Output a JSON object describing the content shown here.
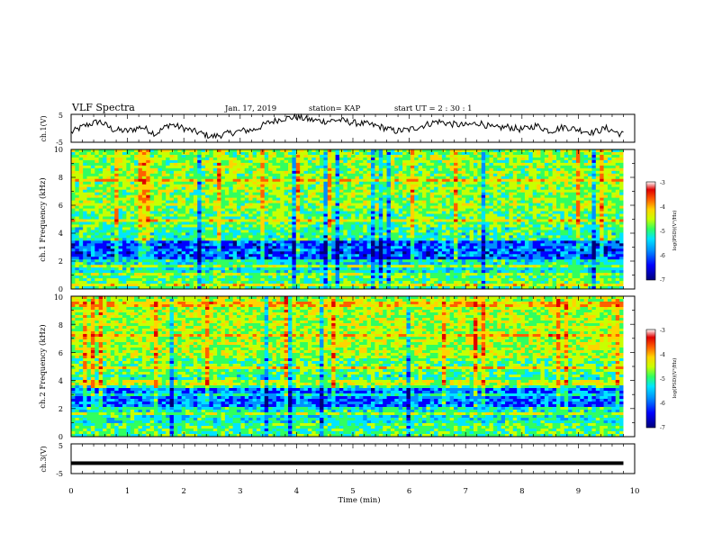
{
  "header": {
    "title": "VLF Spectra",
    "date": "Jan. 17, 2019",
    "station": "station= KAP",
    "start_ut": "start  UT =  2 : 30 : 1"
  },
  "chart_data": [
    {
      "type": "line",
      "panel": "ch1-waveform",
      "ylabel": "ch.1(V)",
      "ylim": [
        -5,
        5
      ],
      "yticks": [
        "5",
        "-5"
      ],
      "xlim": [
        0,
        10
      ],
      "x": [
        0.0,
        0.25,
        0.5,
        0.75,
        1.0,
        1.25,
        1.5,
        1.75,
        2.0,
        2.25,
        2.5,
        2.75,
        3.0,
        3.25,
        3.5,
        3.75,
        4.0,
        4.25,
        4.5,
        4.75,
        5.0,
        5.25,
        5.5,
        5.75,
        6.0,
        6.25,
        6.5,
        6.75,
        7.0,
        7.25,
        7.5,
        7.75,
        8.0,
        8.25,
        8.5,
        8.75,
        9.0,
        9.25,
        9.5,
        9.75
      ],
      "y": [
        -1.5,
        1.0,
        2.5,
        -0.5,
        -1.0,
        0.5,
        -2.0,
        1.5,
        0.0,
        -1.5,
        -3.0,
        -2.0,
        -1.0,
        -0.5,
        2.0,
        3.5,
        4.0,
        3.0,
        2.5,
        3.0,
        2.0,
        1.5,
        0.5,
        -1.0,
        -0.5,
        1.0,
        2.5,
        1.5,
        1.0,
        2.0,
        0.0,
        0.5,
        -0.5,
        1.0,
        -1.0,
        0.5,
        -0.5,
        -1.5,
        0.0,
        -2.0
      ]
    },
    {
      "type": "heatmap",
      "panel": "ch1-spectrogram",
      "ylabel": "ch.1  Frequency  (kHz)",
      "ylim": [
        0,
        10
      ],
      "yticks": [
        "0",
        "2",
        "4",
        "6",
        "8",
        "10"
      ],
      "xlim": [
        0,
        10
      ],
      "colorbar": {
        "label": "log(PSD)(V²/Hz)",
        "range": [
          -7,
          -3
        ],
        "ticks": [
          "-3",
          "-4",
          "-5",
          "-6",
          "-7"
        ]
      }
    },
    {
      "type": "heatmap",
      "panel": "ch2-spectrogram",
      "ylabel": "ch.2  Frequency  (kHz)",
      "ylim": [
        0,
        10
      ],
      "yticks": [
        "0",
        "2",
        "4",
        "6",
        "8",
        "10"
      ],
      "xlim": [
        0,
        10
      ],
      "colorbar": {
        "label": "log(PSD)(V²/Hz)",
        "range": [
          -7,
          -3
        ],
        "ticks": [
          "-3",
          "-4",
          "-5",
          "-6",
          "-7"
        ]
      }
    },
    {
      "type": "line",
      "panel": "ch3-waveform",
      "ylabel": "ch.3(V)",
      "ylim": [
        -5,
        5
      ],
      "yticks": [
        "5",
        "-5"
      ],
      "xlim": [
        0,
        10
      ],
      "x": [
        0,
        9.8
      ],
      "y": [
        -1.5,
        -1.5
      ]
    }
  ],
  "xaxis": {
    "label": "Time  (min)",
    "ticks": [
      "0",
      "1",
      "2",
      "3",
      "4",
      "5",
      "6",
      "7",
      "8",
      "9",
      "10"
    ]
  },
  "colors": {
    "colormap": [
      "#00007a",
      "#0000ff",
      "#0090ff",
      "#00e5ff",
      "#30ff60",
      "#c8ff00",
      "#ffd400",
      "#ff6000",
      "#e00000",
      "#ffffff"
    ]
  }
}
